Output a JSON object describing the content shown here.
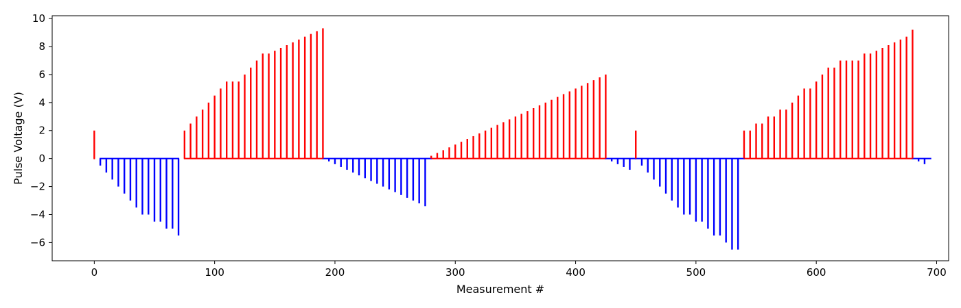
{
  "chart_data": {
    "type": "bar",
    "title": "",
    "xlabel": "Measurement #",
    "ylabel": "Pulse Voltage (V)",
    "xlim": [
      -35,
      710
    ],
    "ylim": [
      -7.3,
      10.2
    ],
    "xticks": [
      0,
      100,
      200,
      300,
      400,
      500,
      600,
      700
    ],
    "yticks": [
      -6,
      -4,
      -2,
      0,
      2,
      4,
      6,
      8,
      10
    ],
    "grid": false,
    "legend": "none",
    "colors": {
      "positive": "#ff0000",
      "negative": "#0000ff"
    },
    "series": [
      {
        "color": "#ff0000",
        "points": [
          [
            0,
            2.0
          ],
          [
            75,
            2.0
          ],
          [
            80,
            2.5
          ],
          [
            85,
            3.0
          ],
          [
            90,
            3.5
          ],
          [
            95,
            4.0
          ],
          [
            100,
            4.5
          ],
          [
            105,
            5.0
          ],
          [
            110,
            5.5
          ],
          [
            115,
            5.5
          ],
          [
            120,
            5.5
          ],
          [
            125,
            6.0
          ],
          [
            130,
            6.5
          ],
          [
            135,
            7.0
          ],
          [
            140,
            7.5
          ],
          [
            145,
            7.5
          ],
          [
            150,
            7.7
          ],
          [
            155,
            7.9
          ],
          [
            160,
            8.1
          ],
          [
            165,
            8.3
          ],
          [
            170,
            8.5
          ],
          [
            175,
            8.7
          ],
          [
            180,
            8.9
          ],
          [
            185,
            9.1
          ],
          [
            190,
            9.3
          ],
          [
            280,
            0.2
          ],
          [
            285,
            0.4
          ],
          [
            290,
            0.6
          ],
          [
            295,
            0.8
          ],
          [
            300,
            1.0
          ],
          [
            305,
            1.2
          ],
          [
            310,
            1.4
          ],
          [
            315,
            1.6
          ],
          [
            320,
            1.8
          ],
          [
            325,
            2.0
          ],
          [
            330,
            2.2
          ],
          [
            335,
            2.4
          ],
          [
            340,
            2.6
          ],
          [
            345,
            2.8
          ],
          [
            350,
            3.0
          ],
          [
            355,
            3.2
          ],
          [
            360,
            3.4
          ],
          [
            365,
            3.6
          ],
          [
            370,
            3.8
          ],
          [
            375,
            4.0
          ],
          [
            380,
            4.2
          ],
          [
            385,
            4.4
          ],
          [
            390,
            4.6
          ],
          [
            395,
            4.8
          ],
          [
            400,
            5.0
          ],
          [
            405,
            5.2
          ],
          [
            410,
            5.4
          ],
          [
            415,
            5.6
          ],
          [
            420,
            5.8
          ],
          [
            425,
            6.0
          ],
          [
            450,
            2.0
          ],
          [
            540,
            2.0
          ],
          [
            545,
            2.0
          ],
          [
            550,
            2.5
          ],
          [
            555,
            2.5
          ],
          [
            560,
            3.0
          ],
          [
            565,
            3.0
          ],
          [
            570,
            3.5
          ],
          [
            575,
            3.5
          ],
          [
            580,
            4.0
          ],
          [
            585,
            4.5
          ],
          [
            590,
            5.0
          ],
          [
            595,
            5.0
          ],
          [
            600,
            5.5
          ],
          [
            605,
            6.0
          ],
          [
            610,
            6.5
          ],
          [
            615,
            6.5
          ],
          [
            620,
            7.0
          ],
          [
            625,
            7.0
          ],
          [
            630,
            7.0
          ],
          [
            635,
            7.0
          ],
          [
            640,
            7.5
          ],
          [
            645,
            7.5
          ],
          [
            650,
            7.7
          ],
          [
            655,
            7.9
          ],
          [
            660,
            8.1
          ],
          [
            665,
            8.3
          ],
          [
            670,
            8.5
          ],
          [
            675,
            8.7
          ],
          [
            680,
            9.2
          ]
        ]
      },
      {
        "color": "#0000ff",
        "points": [
          [
            5,
            -0.5
          ],
          [
            10,
            -1.0
          ],
          [
            15,
            -1.5
          ],
          [
            20,
            -2.0
          ],
          [
            25,
            -2.5
          ],
          [
            30,
            -3.0
          ],
          [
            35,
            -3.5
          ],
          [
            40,
            -4.0
          ],
          [
            45,
            -4.0
          ],
          [
            50,
            -4.5
          ],
          [
            55,
            -4.5
          ],
          [
            60,
            -5.0
          ],
          [
            65,
            -5.0
          ],
          [
            70,
            -5.5
          ],
          [
            195,
            -0.2
          ],
          [
            200,
            -0.4
          ],
          [
            205,
            -0.6
          ],
          [
            210,
            -0.8
          ],
          [
            215,
            -1.0
          ],
          [
            220,
            -1.2
          ],
          [
            225,
            -1.4
          ],
          [
            230,
            -1.6
          ],
          [
            235,
            -1.8
          ],
          [
            240,
            -2.0
          ],
          [
            245,
            -2.2
          ],
          [
            250,
            -2.4
          ],
          [
            255,
            -2.6
          ],
          [
            260,
            -2.8
          ],
          [
            265,
            -3.0
          ],
          [
            270,
            -3.2
          ],
          [
            275,
            -3.4
          ],
          [
            430,
            -0.2
          ],
          [
            435,
            -0.4
          ],
          [
            440,
            -0.6
          ],
          [
            445,
            -0.8
          ],
          [
            455,
            -0.5
          ],
          [
            460,
            -1.0
          ],
          [
            465,
            -1.5
          ],
          [
            470,
            -2.0
          ],
          [
            475,
            -2.5
          ],
          [
            480,
            -3.0
          ],
          [
            485,
            -3.5
          ],
          [
            490,
            -4.0
          ],
          [
            495,
            -4.0
          ],
          [
            500,
            -4.5
          ],
          [
            505,
            -4.5
          ],
          [
            510,
            -5.0
          ],
          [
            515,
            -5.5
          ],
          [
            520,
            -5.5
          ],
          [
            525,
            -6.0
          ],
          [
            530,
            -6.5
          ],
          [
            535,
            -6.5
          ],
          [
            685,
            -0.2
          ],
          [
            690,
            -0.4
          ]
        ]
      }
    ],
    "baselines": [
      {
        "color": "#ff0000",
        "ranges": [
          [
            0,
            0
          ],
          [
            75,
            190
          ],
          [
            280,
            425
          ],
          [
            450,
            450
          ],
          [
            540,
            680
          ]
        ]
      },
      {
        "color": "#0000ff",
        "ranges": [
          [
            5,
            70
          ],
          [
            190,
            280
          ],
          [
            425,
            450
          ],
          [
            450,
            540
          ],
          [
            680,
            695
          ]
        ]
      }
    ]
  }
}
